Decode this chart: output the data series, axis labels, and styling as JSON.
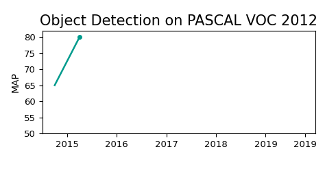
{
  "title": "Object Detection on PASCAL VOC 2012",
  "ylabel": "MAP",
  "x_data": [
    2014.75,
    2015.25
  ],
  "y_data": [
    65.0,
    80.0
  ],
  "line_color": "#009B8D",
  "marker_style": "o",
  "marker_size": 4,
  "xlim": [
    2014.5,
    2020.0
  ],
  "ylim": [
    50,
    82
  ],
  "yticks": [
    50,
    55,
    60,
    65,
    70,
    75,
    80
  ],
  "xticks": [
    2015,
    2016,
    2017,
    2018,
    2019,
    2019.8
  ],
  "xtick_labels": [
    "2015",
    "2016",
    "2017",
    "2018",
    "2019",
    "2019"
  ],
  "background_color": "#ffffff",
  "title_fontsize": 15
}
